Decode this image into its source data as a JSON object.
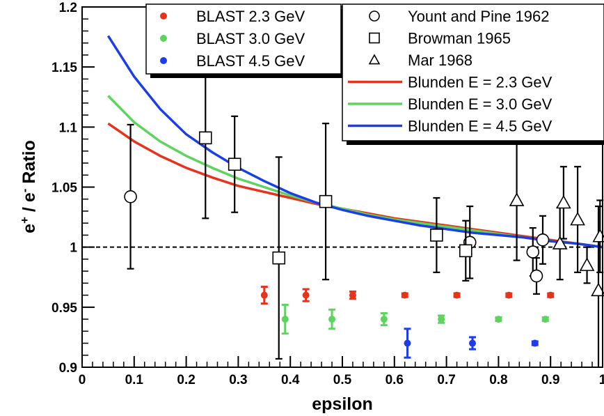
{
  "chart_data": {
    "type": "scatter",
    "xlabel": "epsilon",
    "ylabel_main": "e",
    "ylabel_sup1": "+",
    "ylabel_mid": " / e",
    "ylabel_sup2": "-",
    "ylabel_end": " Ratio",
    "xlim": [
      0,
      1
    ],
    "ylim": [
      0.9,
      1.2
    ],
    "x_ticks": [
      0,
      0.1,
      0.2,
      0.3,
      0.4,
      0.5,
      0.6,
      0.7,
      0.8,
      0.9,
      1
    ],
    "x_tick_labels": [
      "0",
      "0.1",
      "0.2",
      "0.3",
      "0.4",
      "0.5",
      "0.6",
      "0.7",
      "0.8",
      "0.9",
      "1"
    ],
    "y_ticks": [
      0.9,
      0.95,
      1,
      1.05,
      1.1,
      1.15,
      1.2
    ],
    "y_tick_labels": [
      "0.9",
      "0.95",
      "1",
      "1.05",
      "1.1",
      "1.15",
      "1.2"
    ],
    "reference_line": {
      "y": 1,
      "style": "dashed"
    },
    "grid": false,
    "legend_left": [
      {
        "label": "BLAST 2.3 GeV",
        "series": "BLAST 2.3 GeV"
      },
      {
        "label": "BLAST 3.0 GeV",
        "series": "BLAST 3.0 GeV"
      },
      {
        "label": "BLAST 4.5 GeV",
        "series": "BLAST 4.5 GeV"
      }
    ],
    "legend_right": [
      {
        "label": "Yount and Pine 1962",
        "series": "Yount and Pine 1962"
      },
      {
        "label": "Browman 1965",
        "series": "Browman 1965"
      },
      {
        "label": "Mar 1968",
        "series": "Mar 1968"
      },
      {
        "label": "Blunden E = 2.3 GeV",
        "series": "Blunden E = 2.3 GeV"
      },
      {
        "label": "Blunden E = 3.0 GeV",
        "series": "Blunden E = 3.0 GeV"
      },
      {
        "label": "Blunden E = 4.5 GeV",
        "series": "Blunden E = 4.5 GeV"
      }
    ],
    "point_series": [
      {
        "name": "BLAST 2.3 GeV",
        "marker": "dot",
        "color": "#e8331c",
        "points": [
          {
            "x": 0.35,
            "y": 0.96,
            "err": 0.007
          },
          {
            "x": 0.43,
            "y": 0.96,
            "err": 0.005
          },
          {
            "x": 0.52,
            "y": 0.96,
            "err": 0.003
          },
          {
            "x": 0.62,
            "y": 0.96,
            "err": 0.0015
          },
          {
            "x": 0.72,
            "y": 0.96,
            "err": 0.0015
          },
          {
            "x": 0.82,
            "y": 0.96,
            "err": 0.0015
          },
          {
            "x": 0.9,
            "y": 0.96,
            "err": 0.0015
          }
        ]
      },
      {
        "name": "BLAST 3.0 GeV",
        "marker": "dot",
        "color": "#5fd35f",
        "points": [
          {
            "x": 0.39,
            "y": 0.94,
            "err": 0.012
          },
          {
            "x": 0.48,
            "y": 0.94,
            "err": 0.008
          },
          {
            "x": 0.58,
            "y": 0.94,
            "err": 0.005
          },
          {
            "x": 0.69,
            "y": 0.94,
            "err": 0.003
          },
          {
            "x": 0.8,
            "y": 0.94,
            "err": 0.0015
          },
          {
            "x": 0.89,
            "y": 0.94,
            "err": 0.0015
          }
        ]
      },
      {
        "name": "BLAST 4.5 GeV",
        "marker": "dot",
        "color": "#1c3ee8",
        "points": [
          {
            "x": 0.625,
            "y": 0.92,
            "err": 0.012
          },
          {
            "x": 0.75,
            "y": 0.92,
            "err": 0.005
          },
          {
            "x": 0.87,
            "y": 0.92,
            "err": 0.0015
          }
        ]
      },
      {
        "name": "Yount and Pine 1962",
        "marker": "circle",
        "color": "#000000",
        "points": [
          {
            "x": 0.093,
            "y": 1.042,
            "err": 0.06
          },
          {
            "x": 0.745,
            "y": 1.004,
            "err": 0.03
          },
          {
            "x": 0.866,
            "y": 0.996,
            "err": 0.02
          },
          {
            "x": 0.873,
            "y": 0.976,
            "err": 0.015
          },
          {
            "x": 0.885,
            "y": 1.006,
            "err": 0.02
          }
        ]
      },
      {
        "name": "Browman 1965",
        "marker": "square",
        "color": "#000000",
        "points": [
          {
            "x": 0.237,
            "y": 1.091,
            "err": 0.067
          },
          {
            "x": 0.293,
            "y": 1.069,
            "err": 0.04
          },
          {
            "x": 0.378,
            "y": 0.991,
            "err": 0.084
          },
          {
            "x": 0.468,
            "y": 1.038,
            "err": 0.065
          },
          {
            "x": 0.681,
            "y": 1.01,
            "err": 0.031
          },
          {
            "x": 0.737,
            "y": 0.997,
            "err": 0.025
          }
        ]
      },
      {
        "name": "Mar 1968",
        "marker": "triangle",
        "color": "#000000",
        "points": [
          {
            "x": 0.835,
            "y": 1.039,
            "err": 0.05
          },
          {
            "x": 0.918,
            "y": 1.003,
            "err": 0.03
          },
          {
            "x": 0.925,
            "y": 1.037,
            "err": 0.03
          },
          {
            "x": 0.952,
            "y": 1.023,
            "err": 0.044
          },
          {
            "x": 0.97,
            "y": 0.985,
            "err": 0.015
          },
          {
            "x": 0.992,
            "y": 0.964,
            "err": 0.07
          },
          {
            "x": 0.995,
            "y": 1.009,
            "err": 0.03
          }
        ]
      }
    ],
    "line_series": [
      {
        "name": "Blunden E = 2.3 GeV",
        "color": "#e8331c",
        "x": [
          0.05,
          0.1,
          0.15,
          0.2,
          0.25,
          0.3,
          0.35,
          0.4,
          0.45,
          0.5,
          0.55,
          0.6,
          0.65,
          0.7,
          0.75,
          0.8,
          0.85,
          0.9,
          0.95,
          1.0
        ],
        "y": [
          1.103,
          1.088,
          1.076,
          1.066,
          1.058,
          1.051,
          1.046,
          1.041,
          1.036,
          1.032,
          1.028,
          1.024,
          1.021,
          1.018,
          1.015,
          1.012,
          1.009,
          1.006,
          1.003,
          1.0
        ]
      },
      {
        "name": "Blunden E = 3.0 GeV",
        "color": "#5fd35f",
        "x": [
          0.05,
          0.1,
          0.15,
          0.2,
          0.25,
          0.3,
          0.35,
          0.4,
          0.45,
          0.5,
          0.55,
          0.6,
          0.65,
          0.7,
          0.75,
          0.8,
          0.85,
          0.9,
          0.95,
          1.0
        ],
        "y": [
          1.126,
          1.104,
          1.088,
          1.076,
          1.066,
          1.057,
          1.05,
          1.043,
          1.037,
          1.032,
          1.027,
          1.023,
          1.02,
          1.017,
          1.014,
          1.011,
          1.008,
          1.005,
          1.003,
          1.0
        ]
      },
      {
        "name": "Blunden E = 4.5 GeV",
        "color": "#1c3ee8",
        "x": [
          0.05,
          0.1,
          0.15,
          0.2,
          0.25,
          0.3,
          0.35,
          0.4,
          0.45,
          0.5,
          0.55,
          0.6,
          0.65,
          0.7,
          0.75,
          0.8,
          0.85,
          0.9,
          0.95,
          1.0
        ],
        "y": [
          1.176,
          1.142,
          1.115,
          1.094,
          1.079,
          1.066,
          1.055,
          1.045,
          1.037,
          1.031,
          1.026,
          1.022,
          1.018,
          1.015,
          1.012,
          1.01,
          1.008,
          1.005,
          1.003,
          1.0
        ]
      }
    ]
  }
}
